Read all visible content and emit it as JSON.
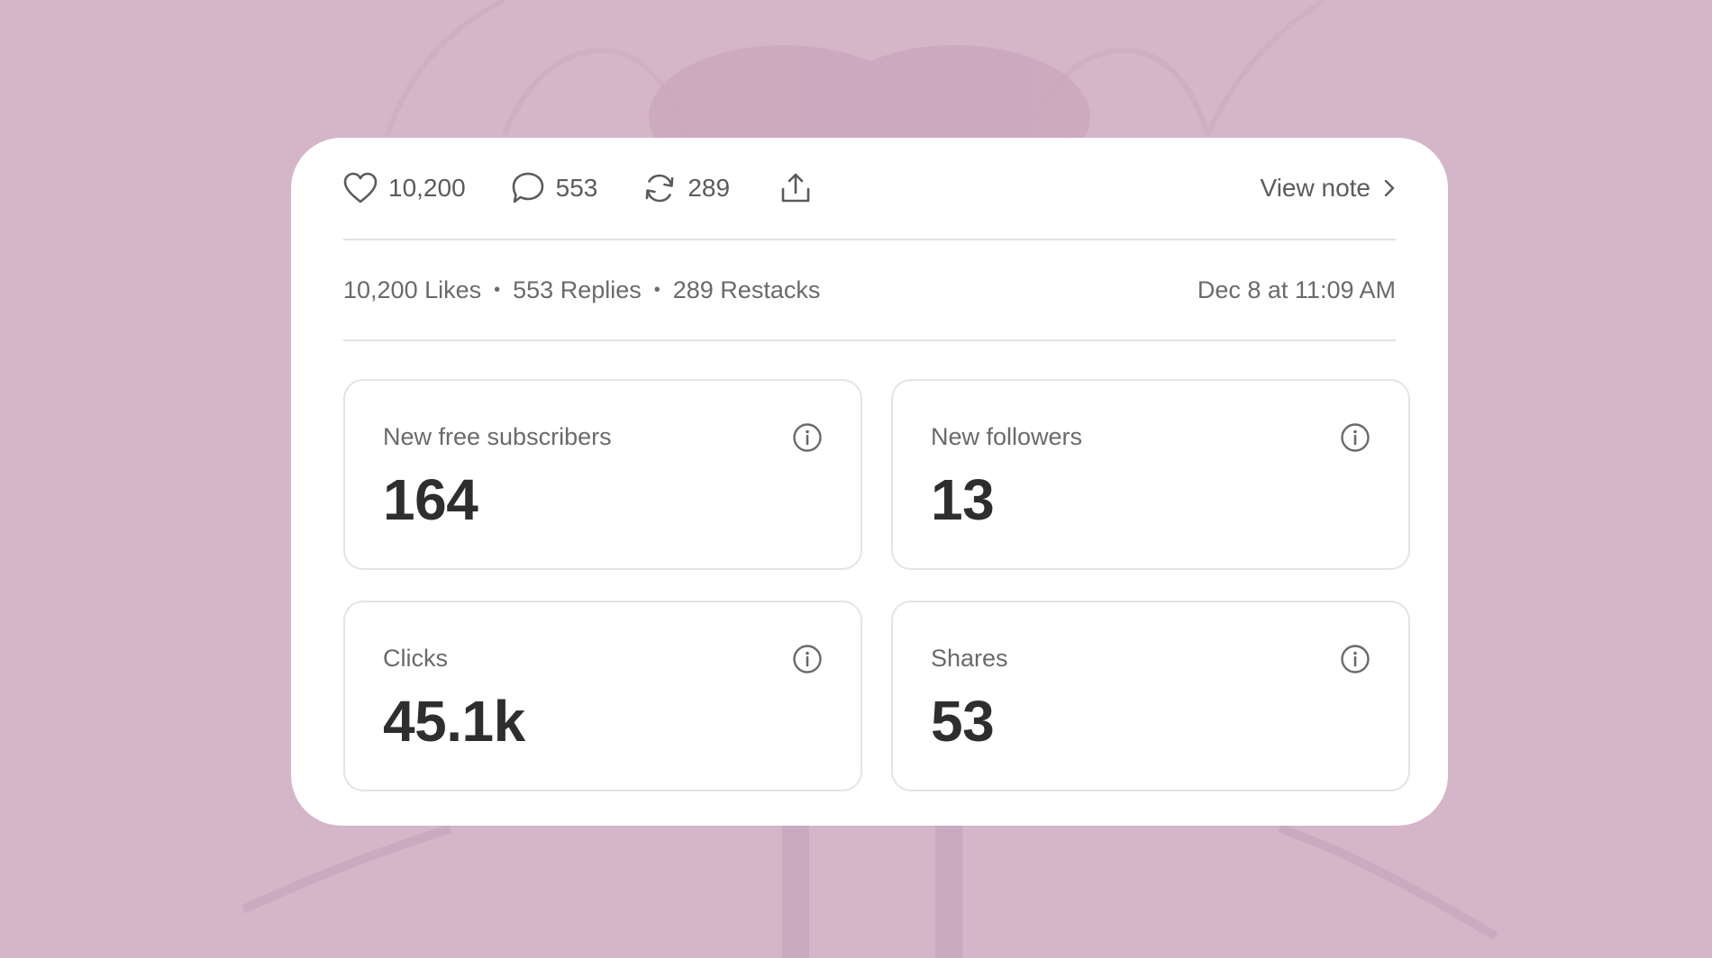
{
  "actions": {
    "likes_count": "10,200",
    "replies_count": "553",
    "restacks_count": "289",
    "view_note_label": "View note",
    "icons": [
      "heart-icon",
      "comment-icon",
      "restack-icon",
      "share-icon",
      "chevron-right-icon"
    ]
  },
  "summary": {
    "likes": "10,200 Likes",
    "separator": "•",
    "replies": "553 Replies",
    "restacks": "289 Restacks",
    "date": "Dec 8 at 11:09 AM"
  },
  "stats": [
    {
      "label": "New free subscribers",
      "value": "164"
    },
    {
      "label": "New followers",
      "value": "13"
    },
    {
      "label": "Clicks",
      "value": "45.1k"
    },
    {
      "label": "Shares",
      "value": "53"
    }
  ],
  "colors": {
    "background": "#d5b6c9",
    "card": "#ffffff",
    "text_muted": "#5b5b5b",
    "text_value": "#2e2e2e",
    "divider": "#e3e3e3"
  }
}
